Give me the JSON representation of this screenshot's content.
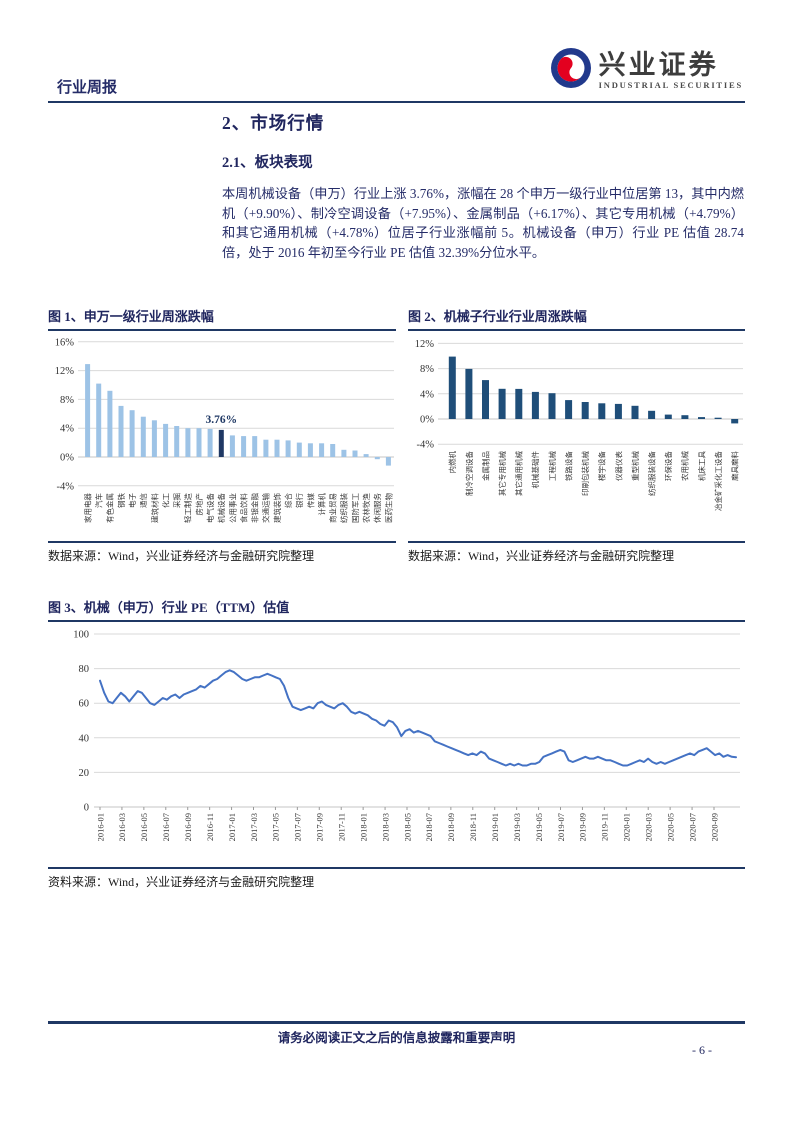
{
  "header": {
    "report_type": "行业周报",
    "brand_cn": "兴业证券",
    "brand_en": "INDUSTRIAL SECURITIES"
  },
  "content": {
    "section_title": "2、市场行情",
    "subsection_title": "2.1、板块表现",
    "paragraph": "本周机械设备（申万）行业上涨 3.76%，涨幅在 28 个申万一级行业中位居第 13，其中内燃机（+9.90%）、制冷空调设备（+7.95%）、金属制品（+6.17%）、其它专用机械（+4.79%）和其它通用机械（+4.78%）位居子行业涨幅前 5。机械设备（申万）行业 PE 估值 28.74 倍，处于 2016 年初至今行业 PE 估值 32.39%分位水平。"
  },
  "colors": {
    "navy": "#1F3864",
    "light_bar": "#9DC3E6",
    "dark_bar": "#1F3864",
    "fig2_bar": "#1F4E79",
    "line": "#4472C4",
    "grid": "#D9D9D9"
  },
  "footer": {
    "disclaimer": "请务必阅读正文之后的信息披露和重要声明",
    "page_number": "- 6 -"
  },
  "chart_data": [
    {
      "id": "fig1",
      "type": "bar",
      "title": "图 1、申万一级行业周涨跌幅",
      "categories": [
        "家用电器",
        "汽车",
        "有色金属",
        "钢铁",
        "电子",
        "通信",
        "建筑材料",
        "化工",
        "采掘",
        "轻工制造",
        "房地产",
        "电气设备",
        "机械设备",
        "公用事业",
        "食品饮料",
        "非银金融",
        "交通运输",
        "建筑装饰",
        "综合",
        "银行",
        "传媒",
        "计算机",
        "商业贸易",
        "纺织服装",
        "国防军工",
        "农林牧渔",
        "休闲服务",
        "医药生物"
      ],
      "values": [
        12.9,
        10.2,
        9.2,
        7.1,
        6.5,
        5.6,
        5.1,
        4.6,
        4.3,
        4.0,
        4.0,
        3.9,
        3.76,
        3.0,
        2.9,
        2.9,
        2.4,
        2.4,
        2.3,
        2.0,
        1.9,
        1.9,
        1.8,
        1.0,
        0.9,
        0.4,
        -0.3,
        -1.2
      ],
      "highlight_index": 12,
      "highlight_label": "3.76%",
      "yticks": [
        16,
        12,
        8,
        4,
        0,
        -4
      ],
      "ylim": [
        -4,
        16
      ],
      "bar_color": "#9DC3E6",
      "highlight_color": "#1F3864",
      "source": "数据来源：Wind，兴业证券经济与金融研究院整理"
    },
    {
      "id": "fig2",
      "type": "bar",
      "title": "图 2、机械子行业行业周涨跌幅",
      "categories": [
        "内燃机",
        "制冷空调设备",
        "金属制品",
        "其它专用机械",
        "其它通用机械",
        "机械基础件",
        "工程机械",
        "铁路设备",
        "印刷包装机械",
        "楼宇设备",
        "仪器仪表",
        "重型机械",
        "纺织服装设备",
        "环保设备",
        "农用机械",
        "机床工具",
        "冶金矿采化工设备",
        "磨具磨料"
      ],
      "values": [
        9.9,
        7.95,
        6.17,
        4.79,
        4.78,
        4.3,
        4.1,
        3.0,
        2.7,
        2.5,
        2.4,
        2.1,
        1.3,
        0.7,
        0.6,
        0.3,
        0.2,
        -0.7
      ],
      "yticks": [
        12,
        8,
        4,
        0,
        -4
      ],
      "ylim": [
        -4,
        12
      ],
      "bar_color": "#1F4E79",
      "source": "数据来源：Wind，兴业证券经济与金融研究院整理"
    },
    {
      "id": "fig3",
      "type": "line",
      "title": "图 3、机械（申万）行业 PE（TTM）估值",
      "x": [
        "2016-01",
        "2016-03",
        "2016-05",
        "2016-07",
        "2016-09",
        "2016-11",
        "2017-01",
        "2017-03",
        "2017-05",
        "2017-07",
        "2017-09",
        "2017-11",
        "2018-01",
        "2018-03",
        "2018-05",
        "2018-07",
        "2018-09",
        "2018-11",
        "2019-01",
        "2019-03",
        "2019-05",
        "2019-07",
        "2019-09",
        "2019-11",
        "2020-01",
        "2020-03",
        "2020-05",
        "2020-07",
        "2020-09"
      ],
      "values": [
        73,
        66,
        61,
        60,
        63,
        66,
        64,
        61,
        64,
        67,
        66,
        63,
        60,
        59,
        61,
        63,
        62,
        64,
        65,
        63,
        65,
        66,
        67,
        68,
        70,
        69,
        71,
        73,
        74,
        76,
        78,
        79,
        78,
        76,
        74,
        73,
        74,
        75,
        75,
        76,
        77,
        76,
        75,
        74,
        70,
        63,
        58,
        57,
        56,
        57,
        58,
        57,
        60,
        61,
        59,
        58,
        57,
        59,
        60,
        58,
        55,
        54,
        55,
        54,
        53,
        51,
        50,
        48,
        47,
        50,
        49,
        46,
        41,
        44,
        45,
        43,
        44,
        43,
        42,
        41,
        38,
        37,
        36,
        35,
        34,
        33,
        32,
        31,
        30,
        31,
        30,
        32,
        31,
        28,
        27,
        26,
        25,
        24,
        25,
        24,
        25,
        24,
        24,
        25,
        25,
        26,
        29,
        30,
        31,
        32,
        33,
        32,
        27,
        26,
        27,
        28,
        29,
        28,
        28,
        29,
        28,
        27,
        27,
        26,
        25,
        24,
        24,
        25,
        26,
        27,
        26,
        28,
        26,
        25,
        26,
        25,
        26,
        27,
        28,
        29,
        30,
        31,
        30,
        32,
        33,
        34,
        32,
        30,
        31,
        29,
        30,
        29,
        28.7
      ],
      "yticks": [
        100,
        80,
        60,
        40,
        20,
        0
      ],
      "ylim": [
        0,
        100
      ],
      "line_color": "#4472C4",
      "source": "资料来源：Wind，兴业证券经济与金融研究院整理"
    }
  ]
}
